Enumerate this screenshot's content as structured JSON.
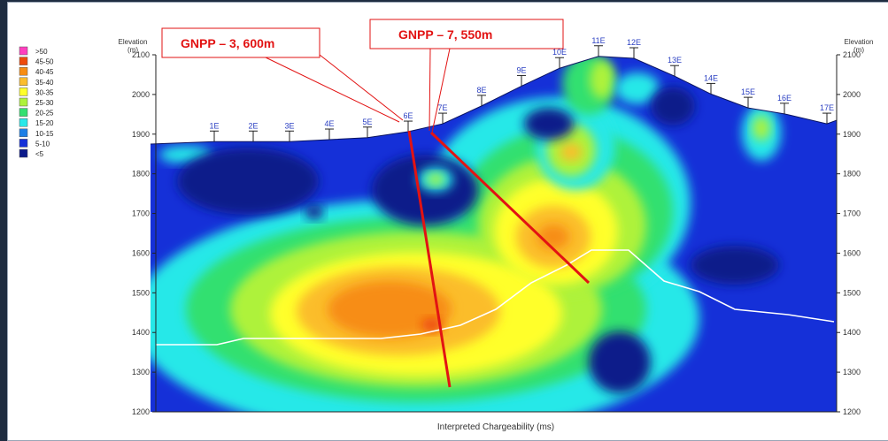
{
  "chart_data": {
    "type": "heatmap",
    "title": "",
    "xlabel": "Interpreted Chargeability (ms)",
    "ylabel_left": "Elevation (m)",
    "ylabel_right": "Elevation (m)",
    "ylim": [
      1200,
      2100
    ],
    "yticks": [
      1200,
      1300,
      1400,
      1500,
      1600,
      1700,
      1800,
      1900,
      2000,
      2100
    ],
    "legend": {
      "placement": "left",
      "entries": [
        {
          "label": ">50",
          "color": "#ff3fbf"
        },
        {
          "label": "45-50",
          "color": "#ee4a0b"
        },
        {
          "label": "40-45",
          "color": "#f78d12"
        },
        {
          "label": "35-40",
          "color": "#fbbd2c"
        },
        {
          "label": "30-35",
          "color": "#ffff2a"
        },
        {
          "label": "25-30",
          "color": "#aef23b"
        },
        {
          "label": "20-25",
          "color": "#33e070"
        },
        {
          "label": "15-20",
          "color": "#28e8e8"
        },
        {
          "label": "10-15",
          "color": "#1d7fe6"
        },
        {
          "label": "5-10",
          "color": "#1530d8"
        },
        {
          "label": "<5",
          "color": "#0c1a8a"
        }
      ]
    },
    "stations": [
      {
        "label": "1E",
        "elevation": 1890
      },
      {
        "label": "2E",
        "elevation": 1890
      },
      {
        "label": "3E",
        "elevation": 1890
      },
      {
        "label": "4E",
        "elevation": 1895
      },
      {
        "label": "5E",
        "elevation": 1900
      },
      {
        "label": "6E",
        "elevation": 1915
      },
      {
        "label": "7E",
        "elevation": 1935
      },
      {
        "label": "8E",
        "elevation": 1980
      },
      {
        "label": "9E",
        "elevation": 2030
      },
      {
        "label": "10E",
        "elevation": 2075
      },
      {
        "label": "11E",
        "elevation": 2105
      },
      {
        "label": "12E",
        "elevation": 2100
      },
      {
        "label": "13E",
        "elevation": 2055
      },
      {
        "label": "14E",
        "elevation": 2010
      },
      {
        "label": "15E",
        "elevation": 1975
      },
      {
        "label": "16E",
        "elevation": 1960
      },
      {
        "label": "17E",
        "elevation": 1935
      }
    ],
    "annotations": [
      {
        "label": "GNPP – 3,   600m",
        "type": "drillhole"
      },
      {
        "label": "GNPP – 7,   550m",
        "type": "drillhole"
      }
    ]
  },
  "colors": {
    "panel_bg": "#ffffff",
    "section_base": "#1530d8",
    "drillhole": "#e21313",
    "white_line": "#ffffff",
    "axis": "#222222",
    "station_label": "#2a3fc2"
  },
  "labels": {
    "elevation_left": "Elevation",
    "elevation_left_unit": "(m)",
    "elevation_right": "Elevation",
    "elevation_right_unit": "(m)"
  }
}
